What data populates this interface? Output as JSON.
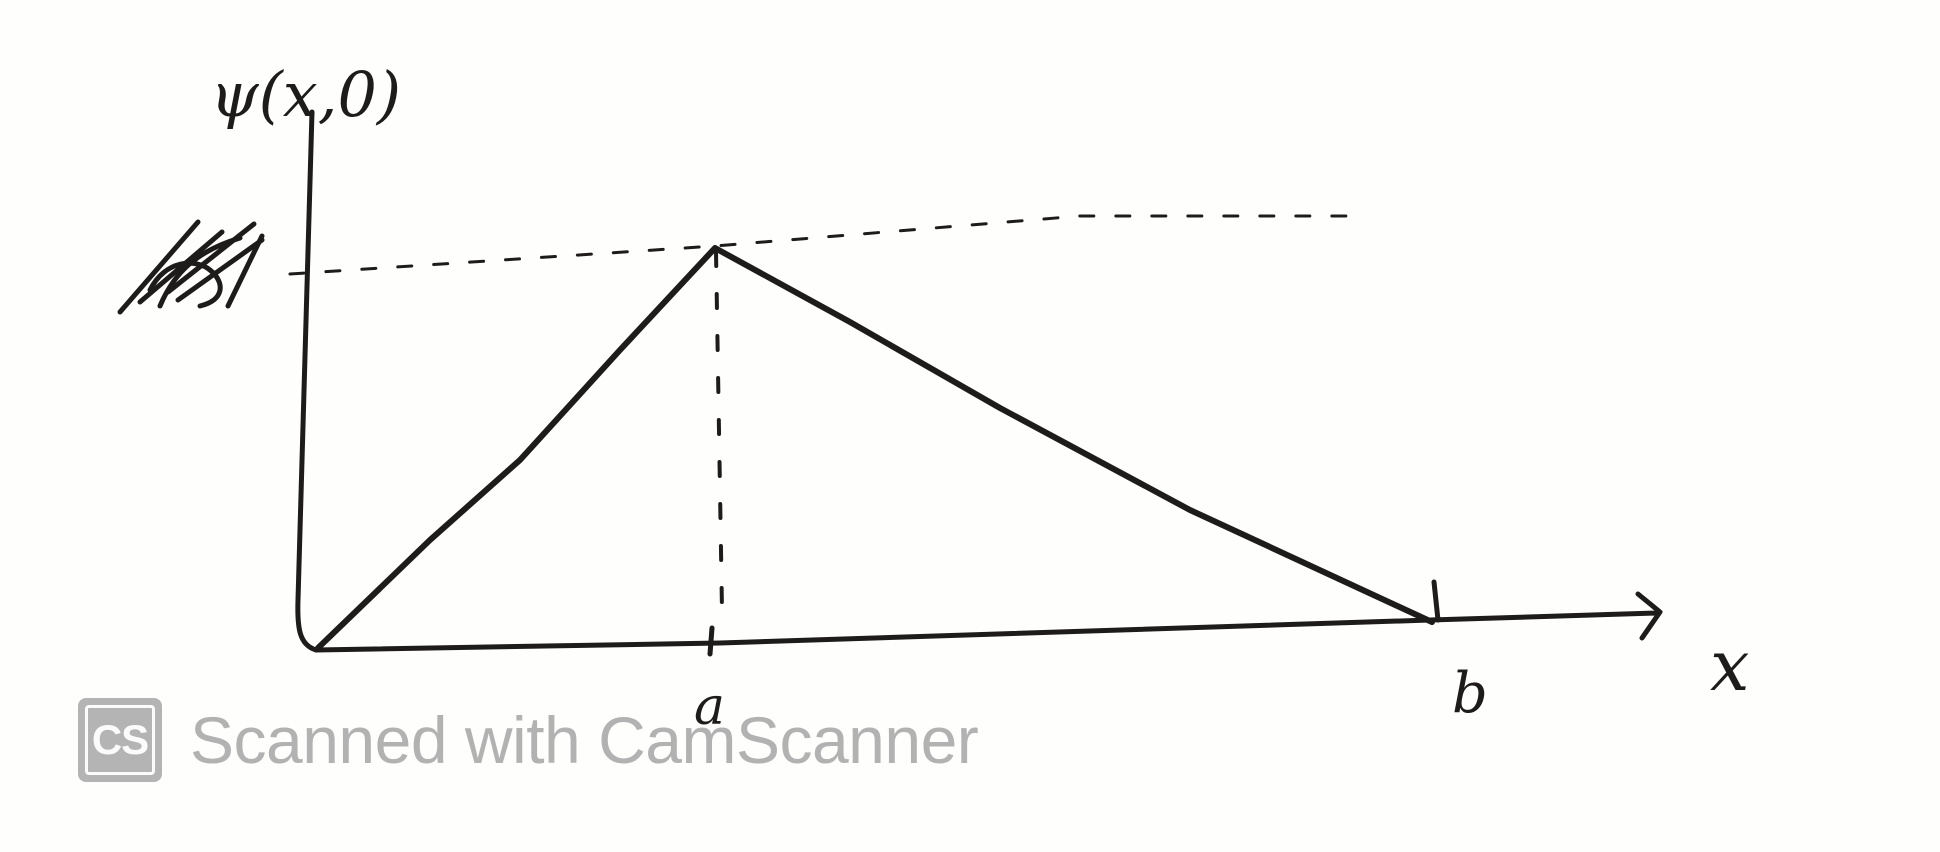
{
  "diagram": {
    "y_axis_label": "ψ(x,0)",
    "x_axis_label": "x",
    "peak_x_label": "a",
    "end_x_label": "b",
    "peak_value_label": "A"
  },
  "watermark": {
    "badge": "CS",
    "text": "Scanned with CamScanner"
  },
  "colors": {
    "ink": "#1e1c1a",
    "watermark": "#b2b2b2",
    "paper": "#fefefd"
  }
}
